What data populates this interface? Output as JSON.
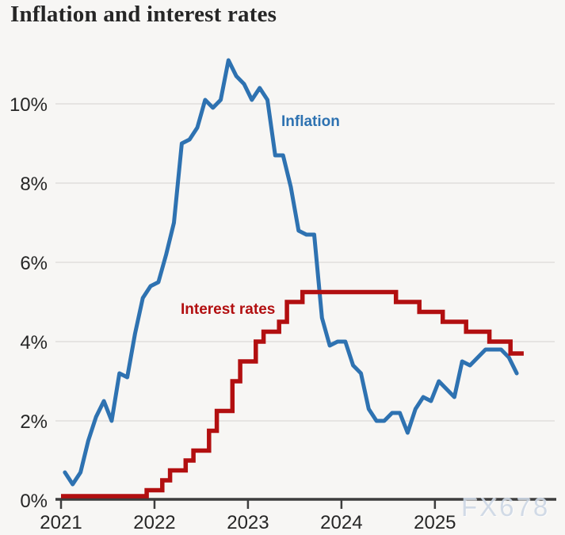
{
  "title": "Inflation and interest rates",
  "watermark": "FX678",
  "colors": {
    "background": "#f7f6f4",
    "title_text": "#262626",
    "axis_text": "#262626",
    "gridline": "#dbdad7",
    "axis": "#3d3d3d",
    "inflation": "#2e72b1",
    "interest": "#b20f10",
    "watermark": "#cdd8e5"
  },
  "chart_data": {
    "type": "line",
    "title": "Inflation and interest rates",
    "xlabel": "",
    "ylabel": "",
    "x_range": "Jan 2021 to Dec 2025, monthly",
    "ylim": [
      0,
      11.6
    ],
    "grid": "horizontal gridlines only, no y-axis line",
    "legend": "inline series labels on chart",
    "y_ticks": [
      {
        "value": 0,
        "label": "0%"
      },
      {
        "value": 2,
        "label": "2%"
      },
      {
        "value": 4,
        "label": "4%"
      },
      {
        "value": 6,
        "label": "6%"
      },
      {
        "value": 8,
        "label": "8%"
      },
      {
        "value": 10,
        "label": "10%"
      }
    ],
    "x_ticks": [
      {
        "month": 0,
        "label": "2021"
      },
      {
        "month": 12,
        "label": "2022"
      },
      {
        "month": 24,
        "label": "2023"
      },
      {
        "month": 36,
        "label": "2024"
      },
      {
        "month": 48,
        "label": "2025"
      }
    ],
    "series": [
      {
        "name": "Inflation",
        "color": "#2e72b1",
        "style": "smooth-line",
        "unit": "%",
        "start": "2021-01",
        "frequency": "monthly",
        "values": [
          0.7,
          0.4,
          0.7,
          1.5,
          2.1,
          2.5,
          2.0,
          3.2,
          3.1,
          4.2,
          5.1,
          5.4,
          5.5,
          6.2,
          7.0,
          9.0,
          9.1,
          9.4,
          10.1,
          9.9,
          10.1,
          11.1,
          10.7,
          10.5,
          10.1,
          10.4,
          10.1,
          8.7,
          8.7,
          7.9,
          6.8,
          6.7,
          6.7,
          4.6,
          3.9,
          4.0,
          4.0,
          3.4,
          3.2,
          2.3,
          2.0,
          2.0,
          2.2,
          2.2,
          1.7,
          2.3,
          2.6,
          2.5,
          3.0,
          2.8,
          2.6,
          3.5,
          3.4,
          3.6,
          3.8,
          3.8,
          3.8,
          3.6,
          3.2
        ]
      },
      {
        "name": "Interest rates",
        "color": "#b20f10",
        "style": "step",
        "unit": "%",
        "points_note": "[month index from Jan 2021, rate %] at each change; last point extends the final stub",
        "points": [
          [
            0,
            0.1
          ],
          [
            11,
            0.25
          ],
          [
            13,
            0.5
          ],
          [
            14,
            0.75
          ],
          [
            16,
            1.0
          ],
          [
            17,
            1.25
          ],
          [
            19,
            1.75
          ],
          [
            20,
            2.25
          ],
          [
            22,
            3.0
          ],
          [
            23,
            3.5
          ],
          [
            25,
            4.0
          ],
          [
            26,
            4.25
          ],
          [
            28,
            4.5
          ],
          [
            29,
            5.0
          ],
          [
            31,
            5.25
          ],
          [
            43,
            5.0
          ],
          [
            46,
            4.75
          ],
          [
            49,
            4.5
          ],
          [
            52,
            4.25
          ],
          [
            55,
            4.0
          ],
          [
            57.7,
            3.7
          ],
          [
            59.4,
            3.7
          ]
        ]
      }
    ]
  }
}
